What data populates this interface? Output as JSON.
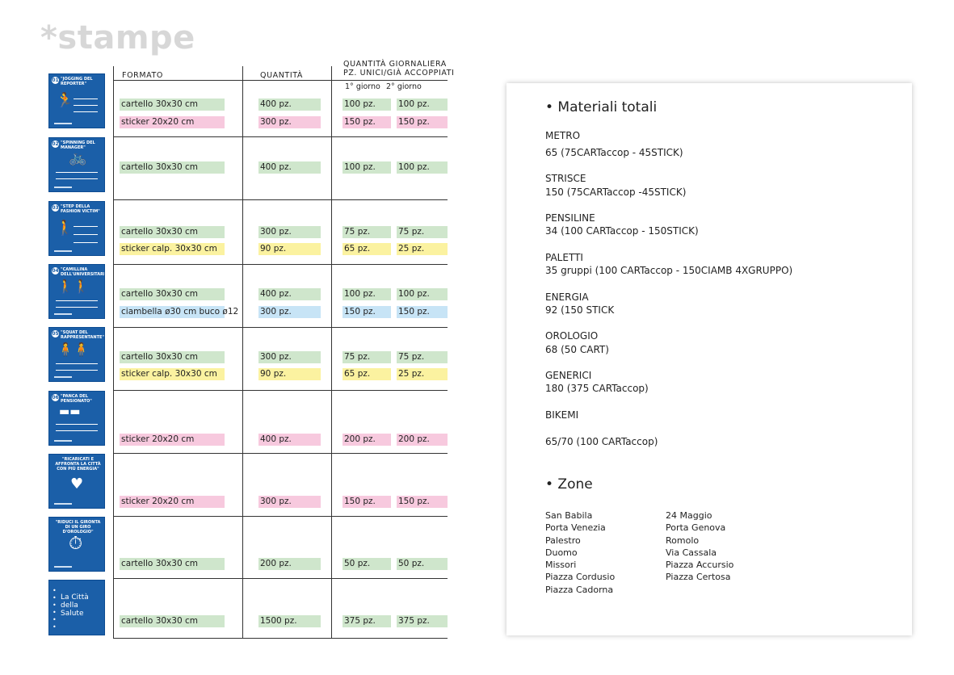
{
  "title": "*stampe",
  "headers": {
    "formato": "FORMATO",
    "quantita": "QUANTITÀ",
    "daily_line1": "QUANTITÀ GIORNALIERA",
    "daily_line2": "PZ. UNICI/GIÀ ACCOPPIATI",
    "day1": "1° giorno",
    "day2": "2° giorno"
  },
  "thumbnails": [
    {
      "num": "01",
      "title": "\"JOGGING DEL REPORTER\""
    },
    {
      "num": "02",
      "title": "\"SPINNING DEL MANAGER\""
    },
    {
      "num": "03",
      "title": "\"STEP DELLA FASHION VICTIM\""
    },
    {
      "num": "04",
      "title": "\"CAMILLINA DELL'UNIVERSITARIO\""
    },
    {
      "num": "05",
      "title": "\"SQUAT DEL RAPPRESENTANTE\""
    },
    {
      "num": "06",
      "title": "\"PANCA DEL PENSIONATO\""
    },
    {
      "num": "",
      "title": "\"RICARICATI E AFFRONTA LA CITTÀ CON PIÙ ENERGIA\""
    },
    {
      "num": "",
      "title": "\"RIDUCI IL GIRONTA DI UN GIRO D'OROLOGIO\""
    },
    {
      "num": "",
      "title": "La Città della Salute"
    }
  ],
  "rows": [
    {
      "formato": "cartello 30x30 cm",
      "color": "green",
      "qty": "400 pz.",
      "d1": "100 pz.",
      "d2": "100 pz."
    },
    {
      "formato": "sticker 20x20 cm",
      "color": "pink",
      "qty": "300 pz.",
      "d1": "150 pz.",
      "d2": "150 pz."
    },
    {
      "formato": "cartello 30x30 cm",
      "color": "green",
      "qty": "400 pz.",
      "d1": "100 pz.",
      "d2": "100 pz."
    },
    {
      "formato": "cartello 30x30 cm",
      "color": "green",
      "qty": "300 pz.",
      "d1": "75 pz.",
      "d2": "75 pz."
    },
    {
      "formato": "sticker calp. 30x30 cm",
      "color": "yellow",
      "qty": "90 pz.",
      "d1": "65 pz.",
      "d2": "25 pz."
    },
    {
      "formato": "cartello 30x30 cm",
      "color": "green",
      "qty": "400 pz.",
      "d1": "100 pz.",
      "d2": "100 pz."
    },
    {
      "formato": "ciambella ø30 cm buco ø12",
      "color": "blue",
      "qty": "300 pz.",
      "d1": "150 pz.",
      "d2": "150 pz."
    },
    {
      "formato": "cartello 30x30 cm",
      "color": "green",
      "qty": "300 pz.",
      "d1": "75 pz.",
      "d2": "75 pz."
    },
    {
      "formato": "sticker calp. 30x30 cm",
      "color": "yellow",
      "qty": "90 pz.",
      "d1": "65 pz.",
      "d2": "25 pz."
    },
    {
      "formato": "sticker 20x20 cm",
      "color": "pink",
      "qty": "400 pz.",
      "d1": "200 pz.",
      "d2": "200 pz."
    },
    {
      "formato": "sticker 20x20 cm",
      "color": "pink",
      "qty": "300 pz.",
      "d1": "150 pz.",
      "d2": "150 pz."
    },
    {
      "formato": "cartello 30x30 cm",
      "color": "green",
      "qty": "200 pz.",
      "d1": "50 pz.",
      "d2": "50 pz."
    },
    {
      "formato": "cartello 30x30 cm",
      "color": "green",
      "qty": "1500 pz.",
      "d1": "375 pz.",
      "d2": "375 pz."
    }
  ],
  "colors": {
    "green": "#cfe6cc",
    "pink": "#f7c9de",
    "yellow": "#fbf2a0",
    "blue": "#c7e4f6",
    "thumb": "#1b5fa8"
  },
  "panel": {
    "materiali_title": "• Materiali totali",
    "materiali": [
      {
        "name": "METRO",
        "value": "65 (75CARTaccop - 45STICK)"
      },
      {
        "name": "STRISCE",
        "value": "150 (75CARTaccop -45STICK)"
      },
      {
        "name": "PENSILINE",
        "value": "34 (100 CARTaccop - 150STICK)"
      },
      {
        "name": "PALETTI",
        "value": "35 gruppi (100 CARTaccop - 150CIAMB 4XGRUPPO)"
      },
      {
        "name": "ENERGIA",
        "value": "92 (150 STICK"
      },
      {
        "name": "OROLOGIO",
        "value": "68 (50 CART)"
      },
      {
        "name": "GENERICI",
        "value": "180 (375 CARTaccop)"
      },
      {
        "name": "BIKEMI",
        "value": "65/70 (100 CARTaccop)"
      }
    ],
    "zone_title": "• Zone",
    "zones_col1": [
      "San Babila",
      "Porta Venezia",
      "Palestro",
      "Duomo",
      "Missori",
      "Piazza Cordusio",
      "Piazza Cadorna"
    ],
    "zones_col2": [
      "24 Maggio",
      "Porta Genova",
      "Romolo",
      "Via Cassala",
      "Piazza Accursio",
      "Piazza Certosa"
    ]
  }
}
